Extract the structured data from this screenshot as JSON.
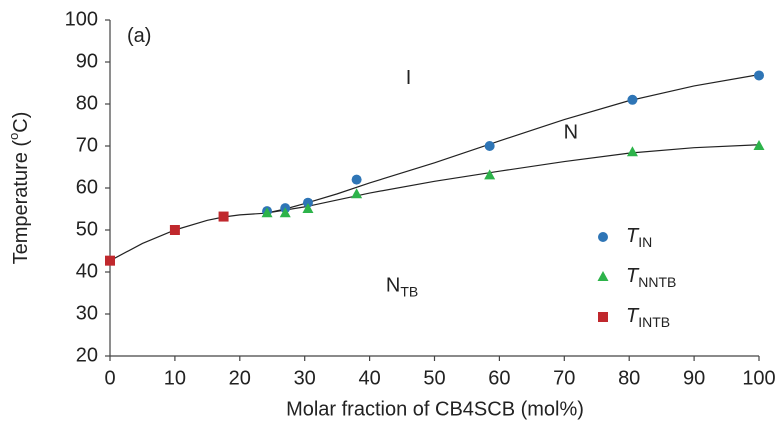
{
  "chart_data": {
    "type": "scatter",
    "x_label": "Molar fraction of CB4SCB (mol%)",
    "y_label": [
      "Temperature (",
      "o",
      "C)"
    ],
    "xlim": [
      0,
      100
    ],
    "xticks": [
      0,
      10,
      20,
      30,
      40,
      50,
      60,
      70,
      80,
      90,
      100
    ],
    "ylim": [
      20,
      100
    ],
    "yticks": [
      20,
      30,
      40,
      50,
      60,
      70,
      80,
      90,
      100
    ],
    "grid": false,
    "series": [
      {
        "name": [
          "T",
          "IN"
        ],
        "color": "#2e75b6",
        "marker": "circle",
        "x": [
          24.2,
          27,
          30.5,
          38,
          58.5,
          80.5,
          100
        ],
        "values": [
          54.5,
          55.2,
          56.5,
          62,
          70,
          81,
          86.8
        ]
      },
      {
        "name": [
          "T",
          "NNTB"
        ],
        "color": "#2db34a",
        "marker": "triangle",
        "x": [
          24.2,
          27,
          30.5,
          38,
          58.5,
          80.5,
          100
        ],
        "values": [
          54,
          54,
          55,
          58.5,
          63,
          68.5,
          70
        ]
      },
      {
        "name": [
          "T",
          "INTB"
        ],
        "color": "#c0282d",
        "marker": "square",
        "x": [
          0,
          10,
          17.5
        ],
        "values": [
          42.7,
          50,
          53.2
        ]
      }
    ],
    "fit_lines": [
      {
        "color": "#222",
        "x": [
          0,
          5,
          10,
          15,
          17.5,
          20,
          24,
          30,
          40,
          50,
          60,
          70,
          80,
          90,
          100
        ],
        "values": [
          42.7,
          46.8,
          50,
          52.3,
          53.1,
          53.6,
          54,
          55.5,
          58.8,
          61.6,
          64,
          66.3,
          68.3,
          69.6,
          70.3
        ]
      },
      {
        "color": "#222",
        "x": [
          24,
          27,
          30,
          35,
          40,
          50,
          60,
          70,
          80,
          90,
          100
        ],
        "values": [
          54,
          55,
          56.3,
          58.6,
          61.2,
          66,
          71.2,
          76.3,
          80.8,
          84.3,
          87
        ]
      }
    ],
    "annotations": [
      {
        "text": [
          "(a)"
        ],
        "x": 4.5,
        "y": 96
      },
      {
        "text": [
          "I"
        ],
        "x": 46,
        "y": 86
      },
      {
        "text": [
          "N"
        ],
        "x": 71,
        "y": 73
      },
      {
        "text": [
          "N",
          "TB"
        ],
        "x": 45,
        "y": 36.5
      }
    ]
  }
}
